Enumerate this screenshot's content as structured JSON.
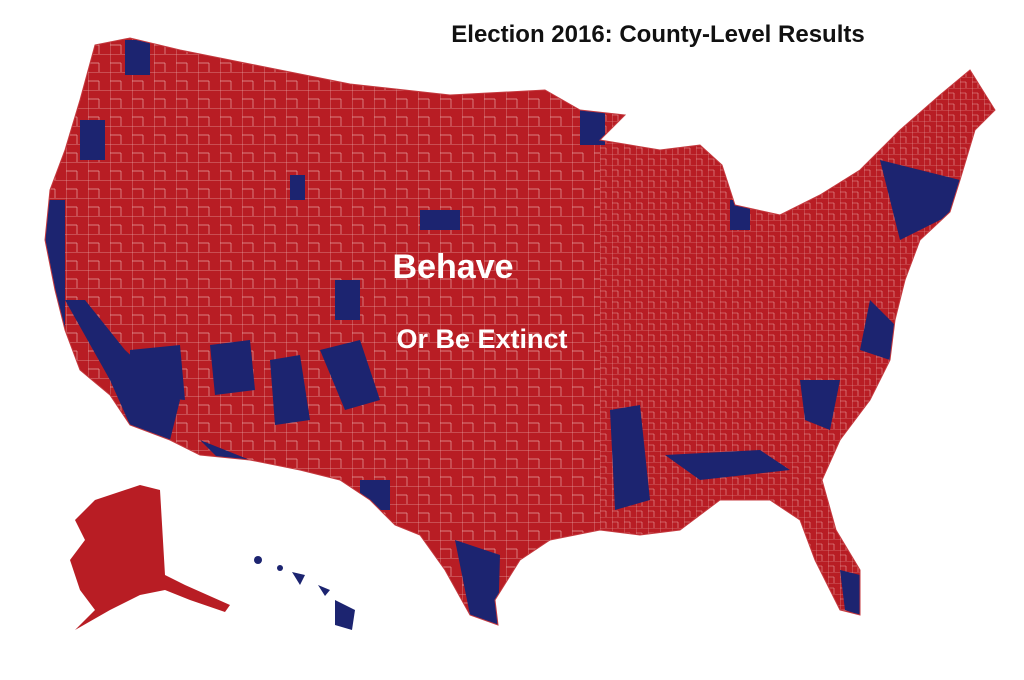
{
  "header": {
    "title": "Election 2016: County-Level Results"
  },
  "overlay": {
    "line1": "Behave",
    "line2": "Or Be Extinct"
  }
}
